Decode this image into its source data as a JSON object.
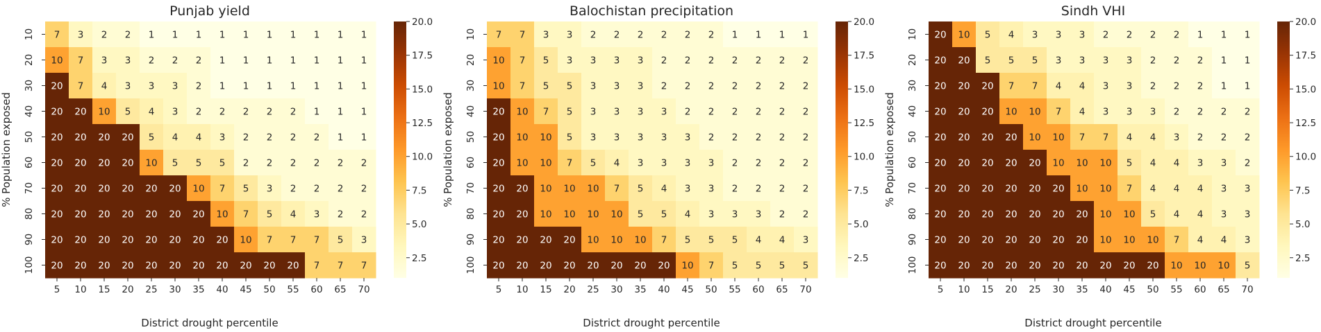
{
  "colormap": [
    "#ffffe5",
    "#fff7bc",
    "#fee391",
    "#fec44f",
    "#fe9929",
    "#ec7014",
    "#cc4c02",
    "#993404",
    "#662506"
  ],
  "chart_data": [
    {
      "type": "heatmap",
      "title": "Punjab yield",
      "xlabel": "District drought percentile",
      "ylabel": "% Population exposed",
      "x": [
        "5",
        "10",
        "15",
        "20",
        "25",
        "30",
        "35",
        "40",
        "45",
        "50",
        "55",
        "60",
        "65",
        "70"
      ],
      "y": [
        "10",
        "20",
        "30",
        "40",
        "50",
        "60",
        "70",
        "80",
        "90",
        "100"
      ],
      "values": [
        [
          7,
          3,
          2,
          2,
          1,
          1,
          1,
          1,
          1,
          1,
          1,
          1,
          1,
          1
        ],
        [
          10,
          7,
          3,
          3,
          2,
          2,
          2,
          1,
          1,
          1,
          1,
          1,
          1,
          1
        ],
        [
          20,
          7,
          4,
          3,
          3,
          3,
          2,
          1,
          1,
          1,
          1,
          1,
          1,
          1
        ],
        [
          20,
          20,
          10,
          5,
          4,
          3,
          2,
          2,
          2,
          2,
          2,
          1,
          1,
          1
        ],
        [
          20,
          20,
          20,
          20,
          5,
          4,
          4,
          3,
          2,
          2,
          2,
          2,
          1,
          1
        ],
        [
          20,
          20,
          20,
          20,
          10,
          5,
          5,
          5,
          2,
          2,
          2,
          2,
          2,
          2
        ],
        [
          20,
          20,
          20,
          20,
          20,
          20,
          10,
          7,
          5,
          3,
          2,
          2,
          2,
          2
        ],
        [
          20,
          20,
          20,
          20,
          20,
          20,
          20,
          10,
          7,
          5,
          4,
          3,
          2,
          2
        ],
        [
          20,
          20,
          20,
          20,
          20,
          20,
          20,
          20,
          10,
          7,
          7,
          7,
          5,
          3
        ],
        [
          20,
          20,
          20,
          20,
          20,
          20,
          20,
          20,
          20,
          20,
          20,
          7,
          7,
          7
        ]
      ],
      "colorbar": {
        "range": [
          1,
          20
        ],
        "ticks": [
          "2.5",
          "5.0",
          "7.5",
          "10.0",
          "12.5",
          "15.0",
          "17.5",
          "20.0"
        ]
      }
    },
    {
      "type": "heatmap",
      "title": "Balochistan precipitation",
      "xlabel": "District drought percentile",
      "ylabel": "% Population exposed",
      "x": [
        "5",
        "10",
        "15",
        "20",
        "25",
        "30",
        "35",
        "40",
        "45",
        "50",
        "55",
        "60",
        "65",
        "70"
      ],
      "y": [
        "10",
        "20",
        "30",
        "40",
        "50",
        "60",
        "70",
        "80",
        "90",
        "100"
      ],
      "values": [
        [
          7,
          7,
          3,
          3,
          2,
          2,
          2,
          2,
          2,
          2,
          1,
          1,
          1,
          1
        ],
        [
          10,
          7,
          5,
          3,
          3,
          3,
          3,
          2,
          2,
          2,
          2,
          2,
          2,
          2
        ],
        [
          10,
          7,
          5,
          5,
          3,
          3,
          3,
          2,
          2,
          2,
          2,
          2,
          2,
          2
        ],
        [
          20,
          10,
          7,
          5,
          3,
          3,
          3,
          3,
          2,
          2,
          2,
          2,
          2,
          2
        ],
        [
          20,
          10,
          10,
          5,
          3,
          3,
          3,
          3,
          3,
          2,
          2,
          2,
          2,
          2
        ],
        [
          20,
          10,
          10,
          7,
          5,
          4,
          3,
          3,
          3,
          3,
          2,
          2,
          2,
          2
        ],
        [
          20,
          20,
          10,
          10,
          10,
          7,
          5,
          4,
          3,
          3,
          2,
          2,
          2,
          2
        ],
        [
          20,
          20,
          10,
          10,
          10,
          10,
          5,
          5,
          4,
          3,
          3,
          3,
          2,
          2
        ],
        [
          20,
          20,
          20,
          20,
          10,
          10,
          10,
          7,
          5,
          5,
          5,
          4,
          4,
          3
        ],
        [
          20,
          20,
          20,
          20,
          20,
          20,
          20,
          20,
          10,
          7,
          5,
          5,
          5,
          5
        ]
      ],
      "colorbar": {
        "range": [
          1,
          20
        ],
        "ticks": [
          "2.5",
          "5.0",
          "7.5",
          "10.0",
          "12.5",
          "15.0",
          "17.5",
          "20.0"
        ]
      }
    },
    {
      "type": "heatmap",
      "title": "Sindh VHI",
      "xlabel": "District drought percentile",
      "ylabel": "% Population exposed",
      "x": [
        "5",
        "10",
        "15",
        "20",
        "25",
        "30",
        "35",
        "40",
        "45",
        "50",
        "55",
        "60",
        "65",
        "70"
      ],
      "y": [
        "10",
        "20",
        "30",
        "40",
        "50",
        "60",
        "70",
        "80",
        "90",
        "100"
      ],
      "values": [
        [
          20,
          10,
          5,
          4,
          3,
          3,
          3,
          2,
          2,
          2,
          2,
          1,
          1,
          1
        ],
        [
          20,
          20,
          5,
          5,
          5,
          3,
          3,
          3,
          3,
          2,
          2,
          2,
          1,
          1
        ],
        [
          20,
          20,
          20,
          7,
          7,
          4,
          4,
          3,
          3,
          2,
          2,
          2,
          1,
          1
        ],
        [
          20,
          20,
          20,
          10,
          10,
          7,
          4,
          3,
          3,
          3,
          2,
          2,
          2,
          2
        ],
        [
          20,
          20,
          20,
          20,
          10,
          10,
          7,
          7,
          4,
          4,
          3,
          2,
          2,
          2
        ],
        [
          20,
          20,
          20,
          20,
          20,
          10,
          10,
          10,
          5,
          4,
          4,
          3,
          3,
          2
        ],
        [
          20,
          20,
          20,
          20,
          20,
          20,
          10,
          10,
          7,
          4,
          4,
          4,
          3,
          3
        ],
        [
          20,
          20,
          20,
          20,
          20,
          20,
          20,
          10,
          10,
          5,
          4,
          4,
          3,
          3
        ],
        [
          20,
          20,
          20,
          20,
          20,
          20,
          20,
          10,
          10,
          10,
          7,
          4,
          4,
          3
        ],
        [
          20,
          20,
          20,
          20,
          20,
          20,
          20,
          20,
          20,
          20,
          10,
          10,
          10,
          5
        ]
      ],
      "colorbar": {
        "range": [
          1,
          20
        ],
        "ticks": [
          "2.5",
          "5.0",
          "7.5",
          "10.0",
          "12.5",
          "15.0",
          "17.5",
          "20.0"
        ]
      }
    }
  ]
}
